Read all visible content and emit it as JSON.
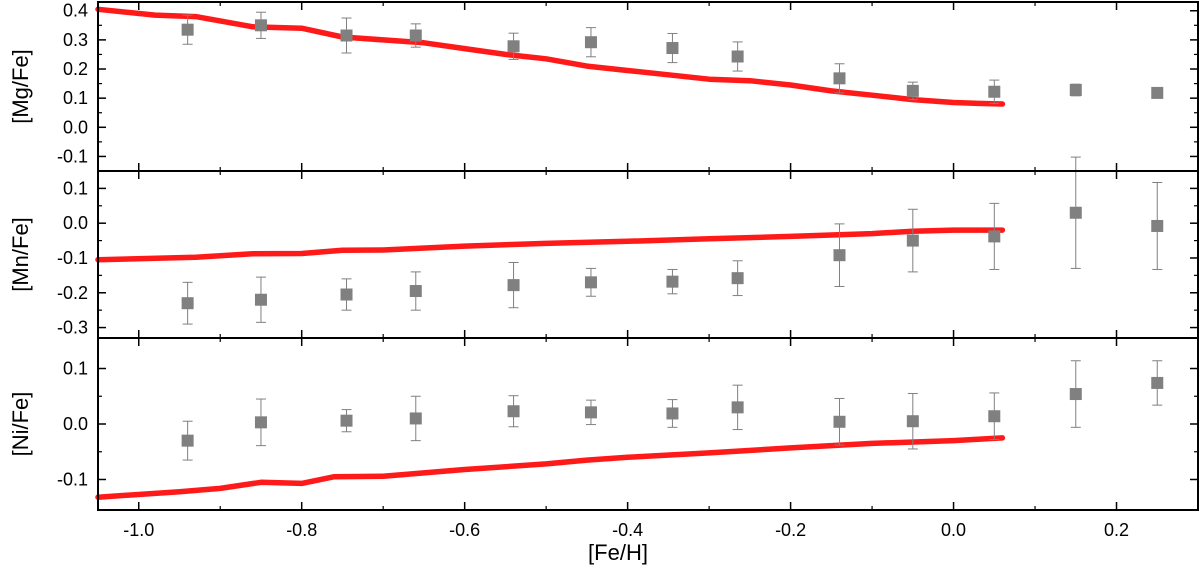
{
  "chart_data": {
    "type": "scatter",
    "shared_x": {
      "xlabel": "[Fe/H]",
      "xlim": [
        -1.05,
        0.3
      ],
      "xticks": [
        -1.0,
        -0.8,
        -0.6,
        -0.4,
        -0.2,
        0.0,
        0.2
      ],
      "xtick_labels": [
        "-1.0",
        "-0.8",
        "-0.6",
        "-0.4",
        "-0.2",
        "0.0",
        "0.2"
      ]
    },
    "colors": {
      "model_line": "#ff1a1a",
      "observed": "#808080",
      "axis": "#000000"
    },
    "panels": [
      {
        "ylabel": "[Mg/Fe]",
        "ylim": [
          -0.15,
          0.43
        ],
        "yticks": [
          -0.1,
          0.0,
          0.1,
          0.2,
          0.3,
          0.4
        ],
        "ytick_labels": [
          "-0.1",
          "0.0",
          "0.1",
          "0.2",
          "0.3",
          "0.4"
        ],
        "series": [
          {
            "kind": "line",
            "x": [
              -1.05,
              -0.98,
              -0.93,
              -0.86,
              -0.8,
              -0.75,
              -0.7,
              -0.65,
              -0.6,
              -0.55,
              -0.5,
              -0.45,
              -0.4,
              -0.35,
              -0.3,
              -0.25,
              -0.2,
              -0.15,
              -0.1,
              -0.05,
              0.0,
              0.03,
              0.06
            ],
            "y": [
              0.405,
              0.385,
              0.38,
              0.345,
              0.34,
              0.31,
              0.3,
              0.29,
              0.27,
              0.25,
              0.235,
              0.21,
              0.195,
              0.18,
              0.165,
              0.16,
              0.145,
              0.125,
              0.11,
              0.095,
              0.085,
              0.082,
              0.08
            ]
          },
          {
            "kind": "points",
            "x": [
              -0.94,
              -0.85,
              -0.745,
              -0.66,
              -0.54,
              -0.445,
              -0.345,
              -0.265,
              -0.14,
              -0.05,
              0.05,
              0.15,
              0.25
            ],
            "y": [
              0.335,
              0.35,
              0.315,
              0.315,
              0.278,
              0.292,
              0.272,
              0.243,
              0.168,
              0.125,
              0.122,
              0.128,
              0.118
            ],
            "err": [
              0.05,
              0.045,
              0.06,
              0.04,
              0.045,
              0.05,
              0.05,
              0.05,
              0.05,
              0.03,
              0.04,
              0.02,
              0.015
            ]
          }
        ]
      },
      {
        "ylabel": "[Mn/Fe]",
        "ylim": [
          -0.33,
          0.15
        ],
        "yticks": [
          -0.3,
          -0.2,
          -0.1,
          0.0,
          0.1
        ],
        "ytick_labels": [
          "-0.3",
          "-0.2",
          "-0.1",
          "0.0",
          "0.1"
        ],
        "series": [
          {
            "kind": "line",
            "x": [
              -1.05,
              -0.93,
              -0.86,
              -0.8,
              -0.75,
              -0.7,
              -0.6,
              -0.5,
              -0.4,
              -0.3,
              -0.2,
              -0.1,
              -0.05,
              0.0,
              0.06
            ],
            "y": [
              -0.105,
              -0.098,
              -0.088,
              -0.087,
              -0.078,
              -0.077,
              -0.066,
              -0.058,
              -0.052,
              -0.045,
              -0.038,
              -0.03,
              -0.023,
              -0.02,
              -0.02
            ]
          },
          {
            "kind": "points",
            "x": [
              -0.94,
              -0.85,
              -0.745,
              -0.66,
              -0.54,
              -0.445,
              -0.345,
              -0.265,
              -0.14,
              -0.05,
              0.05,
              0.15,
              0.25
            ],
            "y": [
              -0.23,
              -0.22,
              -0.205,
              -0.195,
              -0.178,
              -0.17,
              -0.168,
              -0.158,
              -0.092,
              -0.05,
              -0.038,
              0.03,
              -0.008
            ],
            "err": [
              0.06,
              0.065,
              0.045,
              0.055,
              0.065,
              0.04,
              0.035,
              0.05,
              0.09,
              0.09,
              0.095,
              0.16,
              0.125
            ]
          }
        ]
      },
      {
        "ylabel": "[Ni/Fe]",
        "ylim": [
          -0.155,
          0.155
        ],
        "yticks": [
          -0.1,
          0.0,
          0.1
        ],
        "ytick_labels": [
          "-0.1",
          "0.0",
          "0.1"
        ],
        "series": [
          {
            "kind": "line",
            "x": [
              -1.05,
              -0.95,
              -0.9,
              -0.85,
              -0.8,
              -0.76,
              -0.7,
              -0.6,
              -0.5,
              -0.45,
              -0.4,
              -0.3,
              -0.2,
              -0.1,
              0.0,
              0.06
            ],
            "y": [
              -0.132,
              -0.122,
              -0.116,
              -0.105,
              -0.107,
              -0.095,
              -0.094,
              -0.082,
              -0.072,
              -0.065,
              -0.06,
              -0.052,
              -0.043,
              -0.035,
              -0.03,
              -0.025
            ]
          },
          {
            "kind": "points",
            "x": [
              -0.94,
              -0.85,
              -0.745,
              -0.66,
              -0.54,
              -0.445,
              -0.345,
              -0.265,
              -0.14,
              -0.05,
              0.05,
              0.15,
              0.25
            ],
            "y": [
              -0.03,
              0.003,
              0.006,
              0.01,
              0.023,
              0.021,
              0.019,
              0.03,
              0.004,
              0.005,
              0.014,
              0.054,
              0.074
            ],
            "err": [
              0.035,
              0.042,
              0.02,
              0.04,
              0.028,
              0.022,
              0.025,
              0.04,
              0.042,
              0.05,
              0.042,
              0.06,
              0.04
            ]
          }
        ]
      }
    ]
  }
}
